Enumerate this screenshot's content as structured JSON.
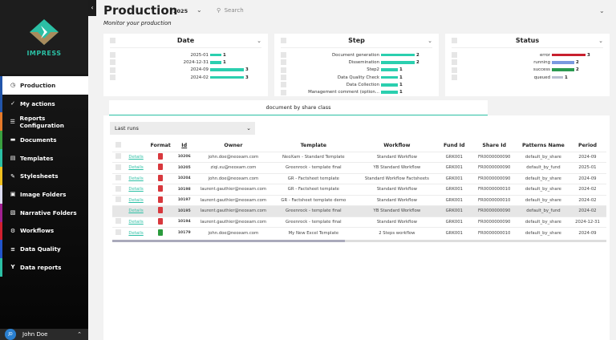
{
  "app": {
    "name": "IMPRESS",
    "title": "Production",
    "subtitle": "Monitor your production",
    "year": "2025",
    "search_placeholder": "Search"
  },
  "sidebar": {
    "items": [
      {
        "label": "Production",
        "icon": "clock-icon",
        "color": "#2255aa"
      },
      {
        "label": "My actions",
        "icon": "check-icon",
        "color": "#2255aa"
      },
      {
        "label": "Reports Configuration",
        "icon": "list-icon",
        "color": "#e57a2a"
      },
      {
        "label": "Documents",
        "icon": "folder-icon",
        "color": "#3aa040"
      },
      {
        "label": "Templates",
        "icon": "template-icon",
        "color": "#2bbfa4"
      },
      {
        "label": "Stylesheets",
        "icon": "brush-icon",
        "color": "#f0c020"
      },
      {
        "label": "Image Folders",
        "icon": "image-icon",
        "color": "#dcdcf0"
      },
      {
        "label": "Narrative Folders",
        "icon": "narrative-icon",
        "color": "#a02090"
      },
      {
        "label": "Workflows",
        "icon": "gear-icon",
        "color": "#d02030"
      },
      {
        "label": "Data Quality",
        "icon": "quality-icon",
        "color": "#2255cc"
      },
      {
        "label": "Data reports",
        "icon": "branch-icon",
        "color": "#2bbfa4"
      }
    ],
    "user": {
      "name": "John Doe",
      "initials": "JD"
    }
  },
  "filters": [
    {
      "title": "Date",
      "rows": [
        {
          "label": "2025-01",
          "count": 1,
          "color": "#2bcfaf"
        },
        {
          "label": "2024-12-31",
          "count": 1,
          "color": "#2bcfaf"
        },
        {
          "label": "2024-09",
          "count": 3,
          "color": "#2bcfaf"
        },
        {
          "label": "2024-02",
          "count": 3,
          "color": "#2bcfaf"
        }
      ]
    },
    {
      "title": "Step",
      "rows": [
        {
          "label": "Document generation",
          "count": 2,
          "color": "#2bcfaf"
        },
        {
          "label": "Dissemination",
          "count": 2,
          "color": "#2bcfaf"
        },
        {
          "label": "Step2",
          "count": 1,
          "color": "#2bcfaf"
        },
        {
          "label": "Data Quality Check",
          "count": 1,
          "color": "#2bcfaf"
        },
        {
          "label": "Data Collection",
          "count": 1,
          "color": "#2bcfaf"
        },
        {
          "label": "Management comment (option...",
          "count": 1,
          "color": "#2bcfaf"
        }
      ]
    },
    {
      "title": "Status",
      "rows": [
        {
          "label": "error",
          "count": 3,
          "color": "#c8202e"
        },
        {
          "label": "running",
          "count": 2,
          "color": "#7a9ae0"
        },
        {
          "label": "success",
          "count": 2,
          "color": "#2a9a50"
        },
        {
          "label": "queued",
          "count": 1,
          "color": "#b8c0d0"
        }
      ]
    }
  ],
  "tab": "document by share class",
  "select": "Last runs",
  "table": {
    "headers": [
      "",
      "",
      "Format",
      "Id",
      "Owner",
      "Template",
      "Workflow",
      "Fund Id",
      "Share Id",
      "Patterns Name",
      "Period"
    ],
    "rows": [
      {
        "link": "Details",
        "format": "pdf",
        "id": "10206",
        "owner": "john.doe@neoxam.com",
        "template": "NeoXam - Standard Template",
        "workflow": "Standard Workflow",
        "fund": "GRK001",
        "share": "FR0000000090",
        "pattern": "default_by_share",
        "period": "2024-09"
      },
      {
        "link": "Details",
        "format": "pdf",
        "id": "10205",
        "owner": "ziqi.xu@neoxam.com",
        "template": "Greenrock - template final",
        "workflow": "YB Standard Workflow",
        "fund": "GRK001",
        "share": "FR0000000090",
        "pattern": "default_by_fund",
        "period": "2025-01"
      },
      {
        "link": "Details",
        "format": "pdf",
        "id": "10204",
        "owner": "john.doe@neoxam.com",
        "template": "GR - Factsheet template",
        "workflow": "Standard Workflow Factsheets",
        "fund": "GRK001",
        "share": "FR0000000090",
        "pattern": "default_by_share",
        "period": "2024-09"
      },
      {
        "link": "Details",
        "format": "pdf",
        "id": "10198",
        "owner": "laurent.gauthier@neoxam.com",
        "template": "GR - Factsheet template",
        "workflow": "Standard Workflow",
        "fund": "GRK001",
        "share": "FR0000000010",
        "pattern": "default_by_share",
        "period": "2024-02"
      },
      {
        "link": "Details",
        "format": "pdf",
        "id": "10197",
        "owner": "laurent.gauthier@neoxam.com",
        "template": "GR - Factsheet template demo",
        "workflow": "Standard Workflow",
        "fund": "GRK001",
        "share": "FR0000000010",
        "pattern": "default_by_share",
        "period": "2024-02"
      },
      {
        "link": "Details",
        "format": "pdf",
        "id": "10195",
        "owner": "laurent.gauthier@neoxam.com",
        "template": "Greenrock - template final",
        "workflow": "YB Standard Workflow",
        "fund": "GRK001",
        "share": "FR0000000090",
        "pattern": "default_by_fund",
        "period": "2024-02"
      },
      {
        "link": "Details",
        "format": "pdf",
        "id": "10194",
        "owner": "laurent.gauthier@neoxam.com",
        "template": "Greenrock - template final",
        "workflow": "Standard Workflow",
        "fund": "GRK001",
        "share": "FR0000000090",
        "pattern": "default_by_share",
        "period": "2024-12-31"
      },
      {
        "link": "Details",
        "format": "xlsx",
        "id": "10179",
        "owner": "john.doe@neoxam.com",
        "template": "My New Excel Template",
        "workflow": "2 Steps workflow",
        "fund": "GRK001",
        "share": "FR0000000010",
        "pattern": "default_by_share",
        "period": "2024-09"
      }
    ]
  }
}
